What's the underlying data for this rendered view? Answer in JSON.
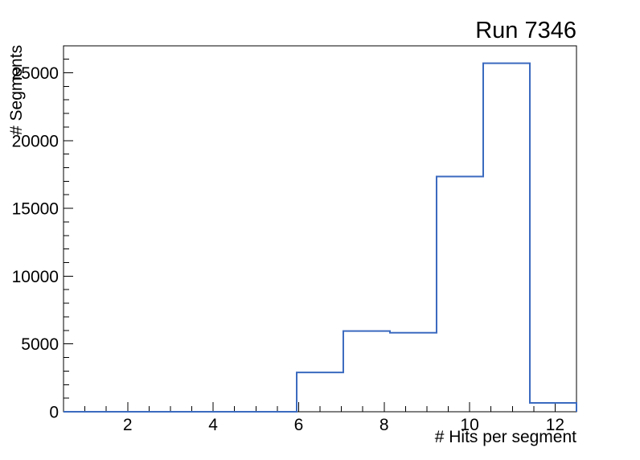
{
  "chart_data": {
    "type": "step-histogram",
    "title": "Run 7346",
    "xlabel": "# Hits per segment",
    "ylabel": "# Segments",
    "xlim": [
      0.5,
      12.5
    ],
    "ylim": [
      0,
      26985
    ],
    "bin_edges": [
      0.5,
      1.591,
      2.682,
      3.773,
      4.864,
      5.955,
      7.045,
      8.136,
      9.227,
      10.318,
      11.409,
      12.5
    ],
    "values": [
      0,
      0,
      0,
      0,
      0,
      2900,
      5950,
      5830,
      17350,
      25700,
      650
    ],
    "x_major_ticks": [
      2,
      4,
      6,
      8,
      10,
      12
    ],
    "x_minor_step": 0.5,
    "y_major_ticks": [
      0,
      5000,
      10000,
      15000,
      20000,
      25000
    ],
    "y_minor_step": 1000,
    "grid": false,
    "legend_position": "none",
    "line_color": "#3b6abf",
    "frame_color": "#000000",
    "background_color": "#ffffff"
  }
}
